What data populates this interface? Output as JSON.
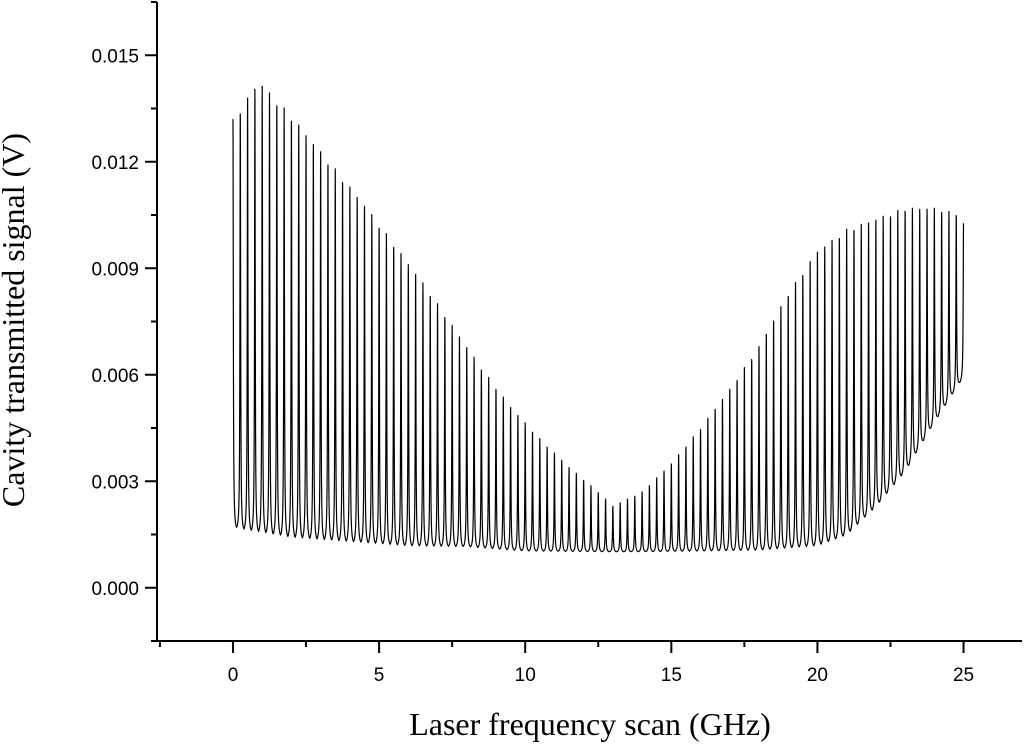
{
  "chart_data": {
    "type": "line",
    "title": "",
    "xlabel": "Laser frequency scan (GHz)",
    "ylabel": "Cavity transmitted signal (V)",
    "xlim": [
      -2.6,
      27.0
    ],
    "ylim": [
      -0.0015,
      0.0165
    ],
    "x_ticks": [
      {
        "value": 0,
        "label": "0"
      },
      {
        "value": 5,
        "label": "5"
      },
      {
        "value": 10,
        "label": "10"
      },
      {
        "value": 15,
        "label": "15"
      },
      {
        "value": 20,
        "label": "20"
      },
      {
        "value": 25,
        "label": "25"
      }
    ],
    "y_ticks": [
      {
        "value": 0.0,
        "label": "0.000"
      },
      {
        "value": 0.003,
        "label": "0.003"
      },
      {
        "value": 0.006,
        "label": "0.006"
      },
      {
        "value": 0.009,
        "label": "0.009"
      },
      {
        "value": 0.012,
        "label": "0.012"
      },
      {
        "value": 0.015,
        "label": "0.015"
      }
    ],
    "grid": false,
    "legend": "none",
    "series": [
      {
        "line_color": "#000000",
        "peak_x_spacing": 0.25,
        "peak_envelope": {
          "x": [
            0,
            0.9,
            1.2,
            2.0,
            2.7,
            3.5,
            4.5,
            5.5,
            6.5,
            7.5,
            8.5,
            9.5,
            10.5,
            11.5,
            12.5,
            13.0,
            14.0,
            15.0,
            16.0,
            17.0,
            18.0,
            19.0,
            20.0,
            21.0,
            22.0,
            23.0,
            24.0,
            25.0
          ],
          "y": [
            0.0132,
            0.0143,
            0.014,
            0.0133,
            0.0126,
            0.0118,
            0.0108,
            0.0097,
            0.0086,
            0.0074,
            0.0062,
            0.0051,
            0.0042,
            0.0034,
            0.0027,
            0.0023,
            0.0027,
            0.0035,
            0.0045,
            0.0056,
            0.0068,
            0.0083,
            0.0095,
            0.0101,
            0.0104,
            0.0107,
            0.0107,
            0.0105
          ]
        },
        "baseline_envelope": {
          "x": [
            0,
            0.5,
            2.0,
            4.0,
            6.0,
            8.0,
            10.0,
            12.0,
            14.0,
            16.0,
            18.0,
            20.0,
            21.0,
            22.0,
            23.0,
            24.0,
            25.0
          ],
          "y": [
            0.0016,
            0.0015,
            0.0013,
            0.0012,
            0.0011,
            0.0011,
            0.001,
            0.001,
            0.001,
            0.001,
            0.001,
            0.0011,
            0.0014,
            0.0022,
            0.0032,
            0.0046,
            0.0059
          ]
        }
      }
    ]
  }
}
